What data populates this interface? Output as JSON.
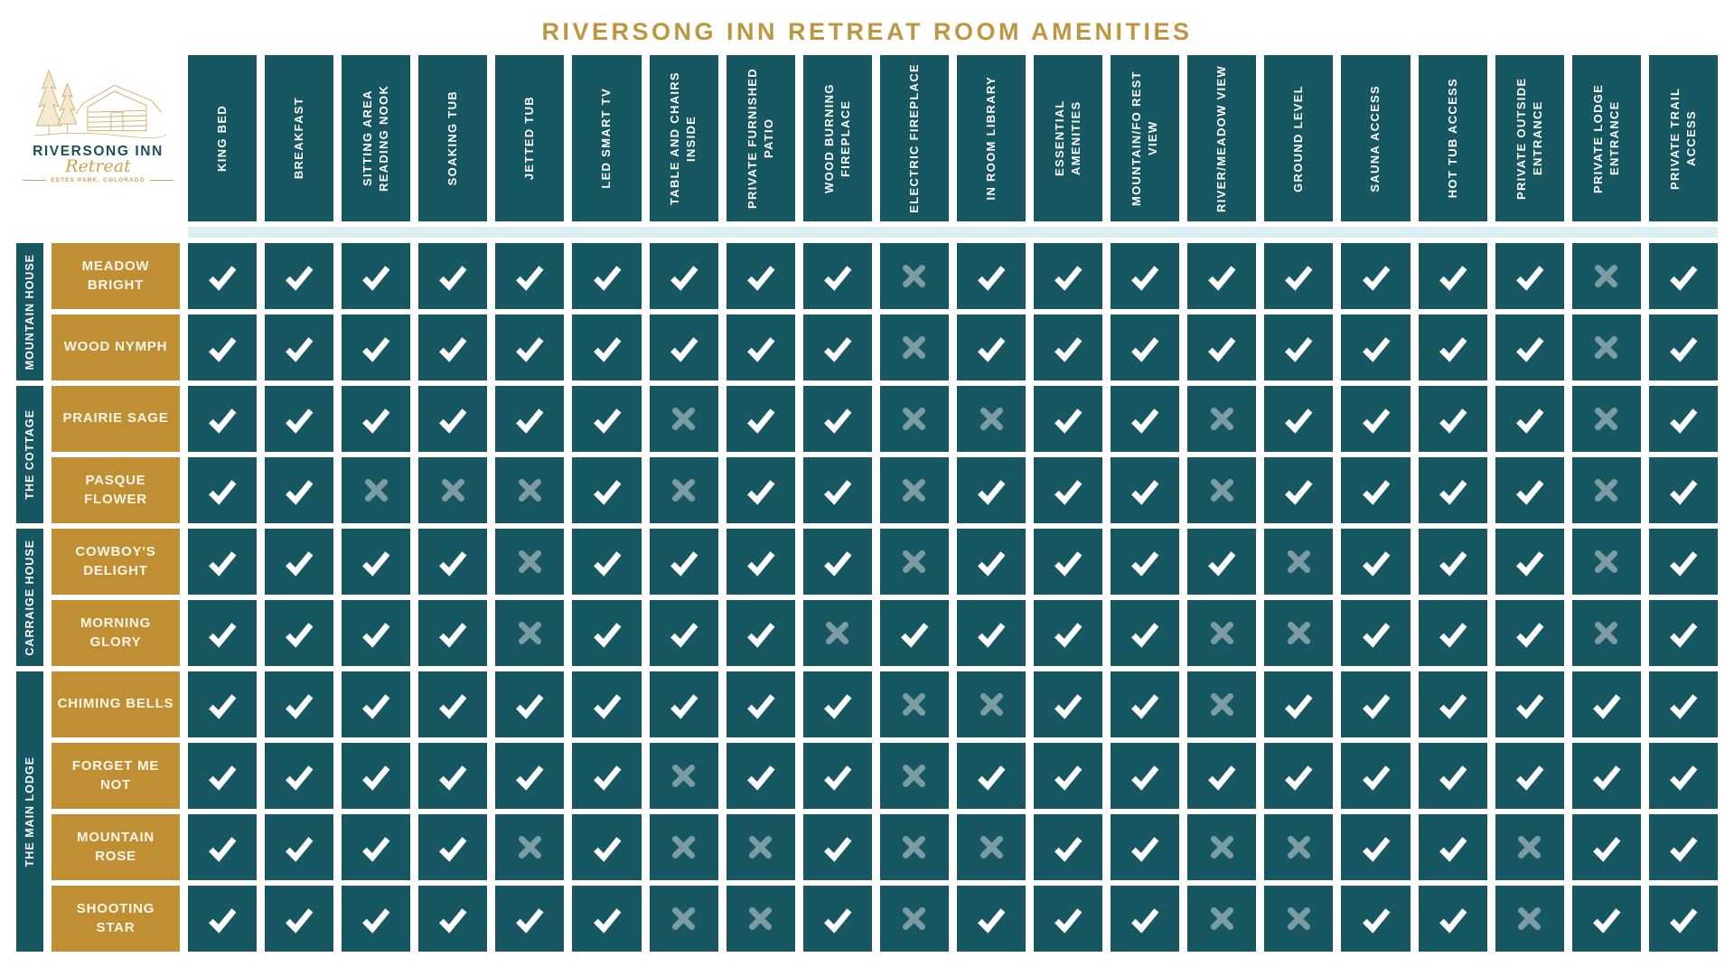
{
  "title": "RIVERSONG INN RETREAT ROOM AMENITIES",
  "logo": {
    "name": "RIVERSONG INN",
    "tagline": "Retreat",
    "location": "ESTES PARK, COLORADO"
  },
  "colors": {
    "teal": "#175761",
    "gold": "#C08E33",
    "title_gold": "#BC973F",
    "check": "#FFFFFF",
    "cross": "#7B9CA3",
    "divider": "#DCF0F3",
    "logo_name_teal": "#1C4F58",
    "logo_sketch_gold": "#C9A352"
  },
  "chart_data": {
    "type": "table",
    "title": "RIVERSONG INN RETREAT ROOM AMENITIES",
    "columns": [
      "KING BED",
      "BREAKFAST",
      "SITTING AREA READING NOOK",
      "SOAKING TUB",
      "JETTED TUB",
      "LED SMART TV",
      "TABLE AND CHAIRS INSIDE",
      "PRIVATE FURNISHED PATIO",
      "WOOD BURNING FIREPLACE",
      "ELECTRIC FIREPLACE",
      "IN ROOM LIBRARY",
      "ESSENTIAL AMENITIES",
      "MOUNTAIN/FO REST VIEW",
      "RIVER/MEADOW VIEW",
      "GROUND LEVEL",
      "SAUNA ACCESS",
      "HOT TUB ACCESS",
      "PRIVATE OUTSIDE ENTRANCE",
      "PRIVATE LODGE ENTRANCE",
      "PRIVATE TRAIL ACCESS"
    ],
    "cell_legend": {
      "1": "check — amenity included",
      "0": "cross — amenity not included"
    },
    "row_groups": [
      {
        "group": "MOUNTAIN HOUSE",
        "rows": [
          {
            "room": "MEADOW BRIGHT",
            "values": [
              1,
              1,
              1,
              1,
              1,
              1,
              1,
              1,
              1,
              0,
              1,
              1,
              1,
              1,
              1,
              1,
              1,
              1,
              0,
              1
            ]
          },
          {
            "room": "WOOD NYMPH",
            "values": [
              1,
              1,
              1,
              1,
              1,
              1,
              1,
              1,
              1,
              0,
              1,
              1,
              1,
              1,
              1,
              1,
              1,
              1,
              0,
              1
            ]
          }
        ]
      },
      {
        "group": "THE COTTAGE",
        "rows": [
          {
            "room": "PRAIRIE SAGE",
            "values": [
              1,
              1,
              1,
              1,
              1,
              1,
              0,
              1,
              1,
              0,
              0,
              1,
              1,
              0,
              1,
              1,
              1,
              1,
              0,
              1
            ]
          },
          {
            "room": "PASQUE FLOWER",
            "values": [
              1,
              1,
              0,
              0,
              0,
              1,
              0,
              1,
              1,
              0,
              1,
              1,
              1,
              0,
              1,
              1,
              1,
              1,
              0,
              1
            ]
          }
        ]
      },
      {
        "group": "CARRAIGE HOUSE",
        "rows": [
          {
            "room": "COWBOY'S DELIGHT",
            "values": [
              1,
              1,
              1,
              1,
              0,
              1,
              1,
              1,
              1,
              0,
              1,
              1,
              1,
              1,
              0,
              1,
              1,
              1,
              0,
              1
            ]
          },
          {
            "room": "MORNING GLORY",
            "values": [
              1,
              1,
              1,
              1,
              0,
              1,
              1,
              1,
              0,
              1,
              1,
              1,
              1,
              0,
              0,
              1,
              1,
              1,
              0,
              1
            ]
          }
        ]
      },
      {
        "group": "THE MAIN LODGE",
        "rows": [
          {
            "room": "CHIMING BELLS",
            "values": [
              1,
              1,
              1,
              1,
              1,
              1,
              1,
              1,
              1,
              0,
              0,
              1,
              1,
              0,
              1,
              1,
              1,
              1,
              1,
              1
            ]
          },
          {
            "room": "FORGET ME NOT",
            "values": [
              1,
              1,
              1,
              1,
              1,
              1,
              0,
              1,
              1,
              0,
              1,
              1,
              1,
              1,
              1,
              1,
              1,
              1,
              1,
              1
            ]
          },
          {
            "room": "MOUNTAIN ROSE",
            "values": [
              1,
              1,
              1,
              1,
              0,
              1,
              0,
              0,
              1,
              0,
              0,
              1,
              1,
              0,
              0,
              1,
              1,
              0,
              1,
              1
            ]
          },
          {
            "room": "SHOOTING STAR",
            "values": [
              1,
              1,
              1,
              1,
              1,
              1,
              0,
              0,
              1,
              0,
              1,
              1,
              1,
              0,
              0,
              1,
              1,
              0,
              1,
              1
            ]
          }
        ]
      }
    ]
  }
}
